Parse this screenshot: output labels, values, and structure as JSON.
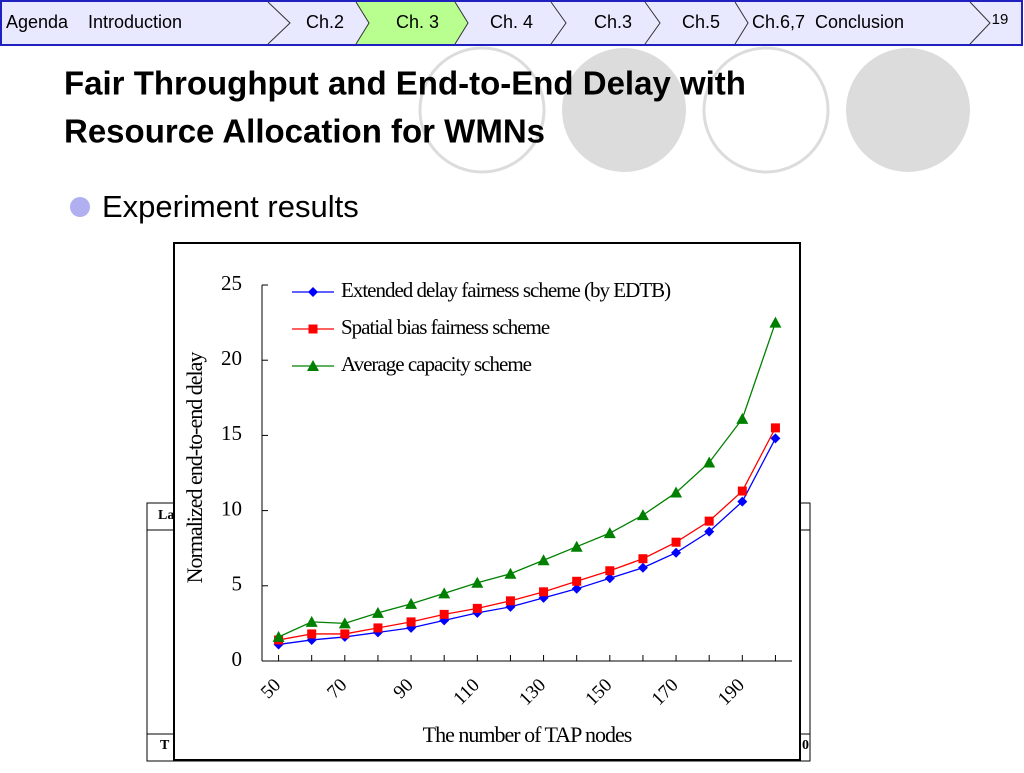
{
  "nav": [
    "Agenda",
    "Introduction",
    "Ch.2",
    "Ch. 3",
    "Ch. 4",
    "Ch.3",
    "Ch.5",
    "Ch.6,7",
    "Conclusion"
  ],
  "page_number": "19",
  "title_line1": "Fair Throughput and End-to-End Delay with",
  "title_line2": "Resource Allocation for WMNs",
  "bullet": "Experiment results",
  "background_table": {
    "header": "La",
    "footer_left": "T",
    "footer_right": "0"
  },
  "chart_data": {
    "type": "line",
    "xlabel": "The number of TAP nodes",
    "ylabel": "Normalized end-to-end delay",
    "x": [
      50,
      60,
      70,
      80,
      90,
      100,
      110,
      120,
      130,
      140,
      150,
      160,
      170,
      180,
      190,
      200
    ],
    "xlim": [
      45,
      205
    ],
    "xticks": [
      50,
      70,
      90,
      110,
      130,
      150,
      170,
      190
    ],
    "ylim": [
      0,
      25
    ],
    "yticks": [
      0,
      5,
      10,
      15,
      20,
      25
    ],
    "legend": "top-left",
    "series": [
      {
        "name": "Extended delay fairness scheme (by EDTB)",
        "color": "#0000ff",
        "marker": "diamond",
        "values": [
          1.1,
          1.4,
          1.6,
          1.9,
          2.2,
          2.7,
          3.2,
          3.6,
          4.2,
          4.8,
          5.5,
          6.2,
          7.2,
          8.6,
          10.6,
          14.8
        ]
      },
      {
        "name": "Spatial bias fairness scheme",
        "color": "#ff0000",
        "marker": "square",
        "values": [
          1.4,
          1.8,
          1.8,
          2.2,
          2.6,
          3.1,
          3.5,
          4.0,
          4.6,
          5.3,
          6.0,
          6.8,
          7.9,
          9.3,
          11.3,
          15.5
        ]
      },
      {
        "name": "Average capacity scheme",
        "color": "#008000",
        "marker": "triangle",
        "values": [
          1.6,
          2.6,
          2.5,
          3.2,
          3.8,
          4.5,
          5.2,
          5.8,
          6.7,
          7.6,
          8.5,
          9.7,
          11.2,
          13.2,
          16.1,
          22.5
        ]
      }
    ]
  }
}
